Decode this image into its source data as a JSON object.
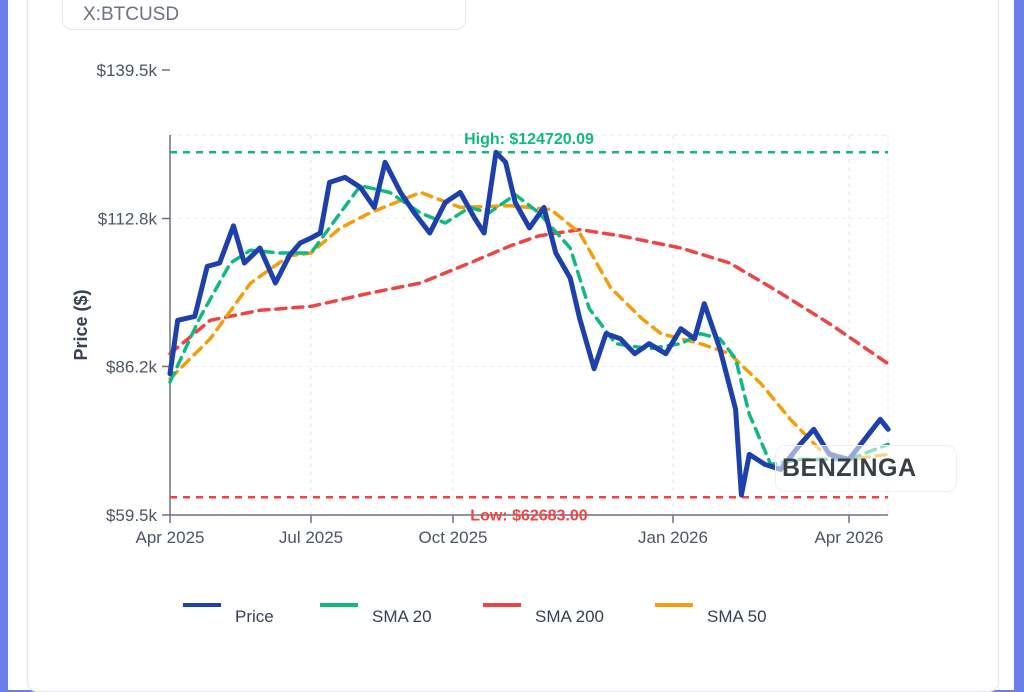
{
  "symbol": "X:BTCUSD",
  "watermark": "BENZINGA",
  "chart_data": {
    "type": "line",
    "ylabel": "Price ($)",
    "xlabel": "",
    "ylim": [
      59.5,
      139.5
    ],
    "y_unit": "thousand USD",
    "yticks": [
      {
        "v": 59.5,
        "label": "$59.5k"
      },
      {
        "v": 86.2,
        "label": "$86.2k"
      },
      {
        "v": 112.8,
        "label": "$112.8k"
      },
      {
        "v": 139.5,
        "label": "$139.5k"
      }
    ],
    "xticks": [
      {
        "d": "2025-04-01",
        "label": "Apr 2025"
      },
      {
        "d": "2025-07-01",
        "label": "Jul 2025"
      },
      {
        "d": "2025-10-01",
        "label": "Oct 2025"
      },
      {
        "d": "2026-01-01",
        "label": "Jan 2026"
      },
      {
        "d": "2026-04-01",
        "label": "Apr 2026"
      }
    ],
    "grid": true,
    "legend_position": "bottom",
    "high": {
      "value": 124.72,
      "label": "High: $124720.09",
      "color": "#10b981"
    },
    "low": {
      "value": 62.683,
      "label": "Low: $62683.00",
      "color": "#ef4444"
    },
    "series": [
      {
        "name": "Price",
        "color": "#1e40af",
        "dashed": false,
        "points": [
          [
            "2025-04-01",
            84.9
          ],
          [
            "2025-04-06",
            94.5
          ],
          [
            "2025-04-17",
            95.2
          ],
          [
            "2025-04-25",
            104.2
          ],
          [
            "2025-05-03",
            104.8
          ],
          [
            "2025-05-12",
            111.5
          ],
          [
            "2025-05-19",
            104.8
          ],
          [
            "2025-05-29",
            107.5
          ],
          [
            "2025-06-08",
            101.2
          ],
          [
            "2025-06-17",
            106.1
          ],
          [
            "2025-06-24",
            108.4
          ],
          [
            "2025-07-01",
            109.3
          ],
          [
            "2025-07-07",
            110.2
          ],
          [
            "2025-07-13",
            119.3
          ],
          [
            "2025-07-23",
            120.2
          ],
          [
            "2025-08-02",
            118.4
          ],
          [
            "2025-08-11",
            114.8
          ],
          [
            "2025-08-18",
            122.9
          ],
          [
            "2025-08-28",
            117.5
          ],
          [
            "2025-09-06",
            113.8
          ],
          [
            "2025-09-16",
            110.2
          ],
          [
            "2025-09-26",
            115.7
          ],
          [
            "2025-10-04",
            117.5
          ],
          [
            "2025-10-10",
            112.9
          ],
          [
            "2025-10-14",
            110.2
          ],
          [
            "2025-10-19",
            124.7
          ],
          [
            "2025-10-23",
            122.9
          ],
          [
            "2025-10-27",
            115.7
          ],
          [
            "2025-11-02",
            111.1
          ],
          [
            "2025-11-08",
            114.8
          ],
          [
            "2025-11-13",
            106.6
          ],
          [
            "2025-11-19",
            102.1
          ],
          [
            "2025-11-23",
            94.8
          ],
          [
            "2025-11-29",
            85.8
          ],
          [
            "2025-12-04",
            92.1
          ],
          [
            "2025-12-10",
            91.2
          ],
          [
            "2025-12-16",
            88.5
          ],
          [
            "2025-12-22",
            90.3
          ],
          [
            "2025-12-29",
            88.5
          ],
          [
            "2026-01-05",
            93.0
          ],
          [
            "2026-01-12",
            91.2
          ],
          [
            "2026-01-17",
            97.5
          ],
          [
            "2026-01-25",
            89.4
          ],
          [
            "2026-02-02",
            78.5
          ],
          [
            "2026-02-05",
            63.1
          ],
          [
            "2026-02-09",
            70.4
          ],
          [
            "2026-02-17",
            68.6
          ],
          [
            "2026-02-25",
            67.7
          ],
          [
            "2026-03-07",
            72.2
          ],
          [
            "2026-03-14",
            74.9
          ],
          [
            "2026-03-22",
            70.4
          ],
          [
            "2026-04-01",
            69.5
          ],
          [
            "2026-04-09",
            73.1
          ],
          [
            "2026-04-17",
            76.7
          ],
          [
            "2026-04-21",
            74.9
          ]
        ]
      },
      {
        "name": "SMA 20",
        "color": "#10b981",
        "dashed": true,
        "points": [
          [
            "2025-04-01",
            83.4
          ],
          [
            "2025-04-20",
            94.8
          ],
          [
            "2025-05-10",
            104.8
          ],
          [
            "2025-05-23",
            107.1
          ],
          [
            "2025-06-11",
            106.6
          ],
          [
            "2025-07-01",
            106.6
          ],
          [
            "2025-07-20",
            113.8
          ],
          [
            "2025-08-02",
            118.7
          ],
          [
            "2025-08-21",
            117.5
          ],
          [
            "2025-09-10",
            113.8
          ],
          [
            "2025-09-26",
            112.0
          ],
          [
            "2025-10-08",
            114.8
          ],
          [
            "2025-10-16",
            113.8
          ],
          [
            "2025-10-27",
            117.1
          ],
          [
            "2025-11-06",
            113.8
          ],
          [
            "2025-11-19",
            107.5
          ],
          [
            "2025-11-27",
            96.6
          ],
          [
            "2025-12-08",
            90.3
          ],
          [
            "2025-12-22",
            89.4
          ],
          [
            "2026-01-05",
            90.3
          ],
          [
            "2026-01-15",
            92.1
          ],
          [
            "2026-01-25",
            91.2
          ],
          [
            "2026-02-02",
            87.6
          ],
          [
            "2026-02-09",
            77.6
          ],
          [
            "2026-02-20",
            68.6
          ],
          [
            "2026-03-07",
            69.5
          ],
          [
            "2026-04-01",
            69.5
          ],
          [
            "2026-04-21",
            72.2
          ]
        ]
      },
      {
        "name": "SMA 200",
        "color": "#ef4444",
        "dashed": true,
        "points": [
          [
            "2025-04-01",
            88.5
          ],
          [
            "2025-04-27",
            94.5
          ],
          [
            "2025-05-29",
            96.3
          ],
          [
            "2025-07-01",
            97.0
          ],
          [
            "2025-08-08",
            99.4
          ],
          [
            "2025-09-10",
            101.2
          ],
          [
            "2025-10-08",
            104.8
          ],
          [
            "2025-10-25",
            107.9
          ],
          [
            "2025-11-06",
            109.7
          ],
          [
            "2025-11-23",
            110.8
          ],
          [
            "2025-12-10",
            109.7
          ],
          [
            "2026-01-05",
            107.5
          ],
          [
            "2026-01-30",
            104.8
          ],
          [
            "2026-02-25",
            99.4
          ],
          [
            "2026-03-22",
            93.9
          ],
          [
            "2026-04-21",
            86.7
          ]
        ]
      },
      {
        "name": "SMA 50",
        "color": "#f59e0b",
        "dashed": true,
        "points": [
          [
            "2025-04-01",
            84.0
          ],
          [
            "2025-04-27",
            91.2
          ],
          [
            "2025-05-23",
            101.2
          ],
          [
            "2025-06-17",
            106.1
          ],
          [
            "2025-07-01",
            106.6
          ],
          [
            "2025-07-20",
            111.1
          ],
          [
            "2025-08-08",
            113.8
          ],
          [
            "2025-09-10",
            117.5
          ],
          [
            "2025-10-04",
            114.8
          ],
          [
            "2025-10-25",
            115.1
          ],
          [
            "2025-11-11",
            114.4
          ],
          [
            "2025-11-23",
            110.2
          ],
          [
            "2025-12-06",
            100.3
          ],
          [
            "2025-12-19",
            94.8
          ],
          [
            "2025-12-27",
            92.1
          ],
          [
            "2026-01-15",
            90.3
          ],
          [
            "2026-01-30",
            88.5
          ],
          [
            "2026-02-15",
            83.1
          ],
          [
            "2026-03-02",
            76.7
          ],
          [
            "2026-03-17",
            71.3
          ],
          [
            "2026-04-01",
            69.5
          ],
          [
            "2026-04-21",
            70.4
          ]
        ]
      }
    ]
  }
}
